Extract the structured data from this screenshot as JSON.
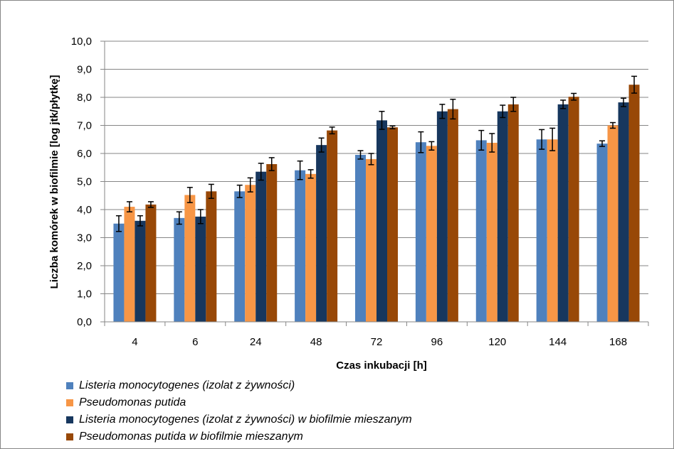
{
  "chart_data": {
    "type": "bar",
    "xlabel": "Czas inkubacji [h]",
    "ylabel": "Liczba komórek w biofilmie [log jtk/płytkę]",
    "ylim": [
      0,
      10
    ],
    "yticks": [
      "0,0",
      "1,0",
      "2,0",
      "3,0",
      "4,0",
      "5,0",
      "6,0",
      "7,0",
      "8,0",
      "9,0",
      "10,0"
    ],
    "categories": [
      "4",
      "6",
      "24",
      "48",
      "72",
      "96",
      "120",
      "144",
      "168"
    ],
    "grid": true,
    "error_bars": true,
    "legend_position": "bottom",
    "series": [
      {
        "name": "Listeria monocytogenes (izolat z żywności)",
        "color": "#4f81bd",
        "values": [
          3.5,
          3.7,
          4.65,
          5.4,
          5.95,
          6.4,
          6.47,
          6.5,
          6.35
        ],
        "errors": [
          0.28,
          0.22,
          0.22,
          0.33,
          0.15,
          0.37,
          0.35,
          0.35,
          0.1
        ]
      },
      {
        "name": "Pseudomonas putida",
        "color": "#f79646",
        "values": [
          4.1,
          4.52,
          4.88,
          5.27,
          5.8,
          6.27,
          6.38,
          6.5,
          7.0
        ],
        "errors": [
          0.18,
          0.27,
          0.25,
          0.15,
          0.2,
          0.15,
          0.33,
          0.4,
          0.1
        ]
      },
      {
        "name": "Listeria monocytogenes (izolat z żywności) w biofilmie mieszanym",
        "color": "#17375e",
        "values": [
          3.6,
          3.75,
          5.35,
          6.3,
          7.18,
          7.5,
          7.5,
          7.75,
          7.82
        ],
        "errors": [
          0.18,
          0.25,
          0.3,
          0.25,
          0.32,
          0.25,
          0.22,
          0.15,
          0.15
        ]
      },
      {
        "name": "Pseudomonas putida w biofilmie mieszanym",
        "color": "#984807",
        "values": [
          4.18,
          4.65,
          5.62,
          6.82,
          6.93,
          7.58,
          7.75,
          8.02,
          8.45
        ],
        "errors": [
          0.1,
          0.25,
          0.23,
          0.12,
          0.05,
          0.35,
          0.25,
          0.12,
          0.3
        ]
      }
    ]
  }
}
